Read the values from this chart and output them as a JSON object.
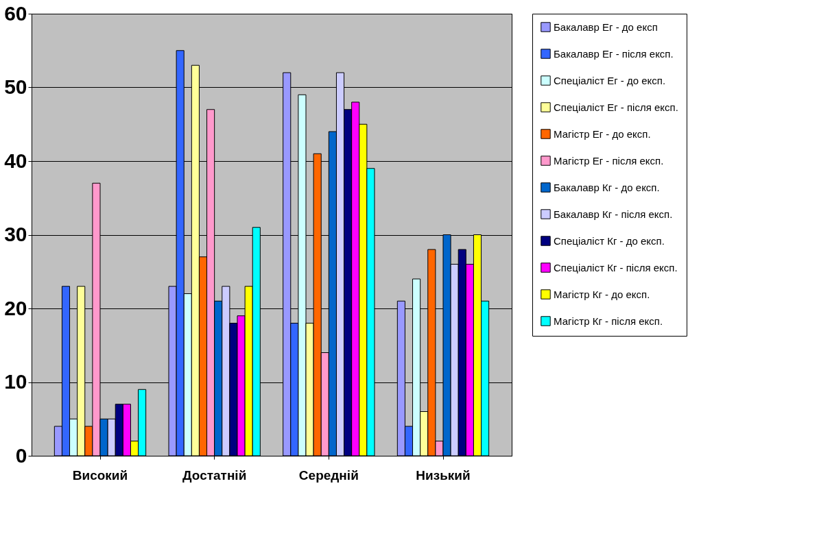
{
  "chart_data": {
    "type": "bar",
    "categories": [
      "Високий",
      "Достатній",
      "Середній",
      "Низький"
    ],
    "series": [
      {
        "name": "Бакалавр Ег - до експ",
        "color": "#9999ff",
        "values": [
          4,
          23,
          52,
          21
        ]
      },
      {
        "name": "Бакалавр Ег - після експ.",
        "color": "#3366ff",
        "values": [
          23,
          55,
          18,
          4
        ]
      },
      {
        "name": "Спеціаліст Ег - до експ.",
        "color": "#ccffff",
        "values": [
          5,
          22,
          49,
          24
        ]
      },
      {
        "name": "Спеціаліст Ег - після експ.",
        "color": "#ffff99",
        "values": [
          23,
          53,
          18,
          6
        ]
      },
      {
        "name": "Магістр Ег - до експ.",
        "color": "#ff6600",
        "values": [
          4,
          27,
          41,
          28
        ]
      },
      {
        "name": "Магістр Ег - після експ.",
        "color": "#ff99cc",
        "values": [
          37,
          47,
          14,
          2
        ]
      },
      {
        "name": "Бакалавр Кг - до експ.",
        "color": "#0066cc",
        "values": [
          5,
          21,
          44,
          30
        ]
      },
      {
        "name": "Бакалавр Кг - після експ.",
        "color": "#ccccff",
        "values": [
          5,
          23,
          52,
          26
        ]
      },
      {
        "name": "Спеціаліст Кг - до експ.",
        "color": "#000080",
        "values": [
          7,
          18,
          47,
          28
        ]
      },
      {
        "name": "Спеціаліст Кг - після експ.",
        "color": "#ff00ff",
        "values": [
          7,
          19,
          48,
          26
        ]
      },
      {
        "name": "Магістр Кг - до експ.",
        "color": "#ffff00",
        "values": [
          2,
          23,
          45,
          30
        ]
      },
      {
        "name": "Магістр Кг - після експ.",
        "color": "#00ffff",
        "values": [
          9,
          31,
          39,
          21
        ]
      }
    ],
    "ylim": [
      0,
      60
    ],
    "yticks": [
      0,
      10,
      20,
      30,
      40,
      50,
      60
    ],
    "grid": "y",
    "legend": "right"
  }
}
